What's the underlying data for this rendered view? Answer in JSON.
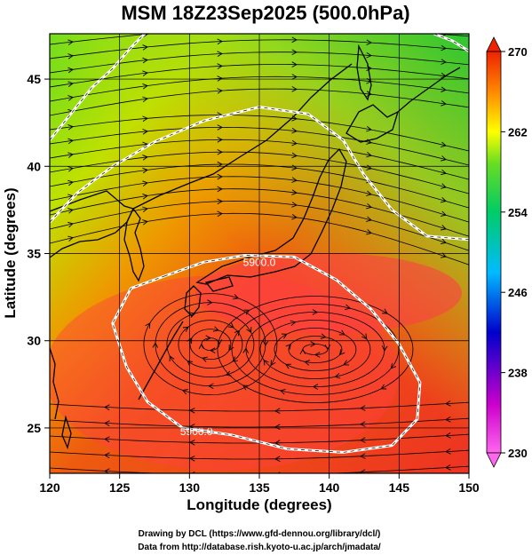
{
  "chart_data": {
    "type": "heatmap",
    "title": "MSM 18Z23Sep2025 (500.0hPa)",
    "xlabel": "Longitude (degrees)",
    "ylabel": "Latitude  (degrees)",
    "xlim": [
      120,
      150
    ],
    "ylim": [
      22.4,
      47.6
    ],
    "x_ticks": [
      120,
      125,
      130,
      135,
      140,
      145,
      150
    ],
    "y_ticks": [
      25,
      30,
      35,
      40,
      45
    ],
    "x_tick_labels": [
      "120",
      "125",
      "130",
      "135",
      "140",
      "145",
      "150"
    ],
    "y_tick_labels": [
      "25",
      "30",
      "35",
      "40",
      "45"
    ],
    "grid": true,
    "colorbar": {
      "range": [
        230,
        270
      ],
      "ticks": [
        230,
        238,
        246,
        254,
        262,
        270
      ],
      "tick_labels": [
        "230",
        "238",
        "246",
        "254",
        "262",
        "270"
      ],
      "colors": [
        "#ff66ee",
        "#cc00cc",
        "#0000cc",
        "#00bbff",
        "#00cc66",
        "#66dd22",
        "#ffff00",
        "#ff8800",
        "#ee2200"
      ]
    },
    "contours": [
      {
        "level_label": "5900.0",
        "color": "#ffffff",
        "path": [
          [
            128.2,
            33.7
          ],
          [
            131.0,
            34.5
          ],
          [
            134.0,
            34.9
          ],
          [
            137.5,
            34.8
          ],
          [
            140.5,
            33.5
          ],
          [
            143.0,
            31.8
          ],
          [
            145.0,
            29.8
          ],
          [
            146.5,
            27.6
          ],
          [
            146.3,
            25.5
          ],
          [
            144.5,
            24.0
          ],
          [
            141.0,
            23.6
          ],
          [
            137.0,
            23.8
          ],
          [
            133.0,
            24.6
          ],
          [
            129.5,
            25.0
          ],
          [
            127.0,
            26.5
          ],
          [
            125.5,
            28.5
          ],
          [
            124.5,
            31.0
          ],
          [
            125.8,
            33.0
          ],
          [
            128.2,
            33.7
          ]
        ],
        "labels_at": [
          [
            135.0,
            34.5
          ],
          [
            130.5,
            24.8
          ]
        ]
      },
      {
        "level_label": "",
        "color": "#ffffff",
        "path": [
          [
            120.0,
            36.8
          ],
          [
            122.0,
            38.5
          ],
          [
            124.5,
            40.0
          ],
          [
            127.5,
            41.4
          ],
          [
            131.0,
            42.6
          ],
          [
            135.0,
            43.4
          ],
          [
            138.5,
            43.0
          ],
          [
            141.0,
            41.5
          ],
          [
            142.5,
            39.5
          ],
          [
            144.5,
            37.5
          ],
          [
            147.0,
            36.0
          ],
          [
            150.0,
            35.8
          ]
        ],
        "labels_at": []
      },
      {
        "level_label": "",
        "color": "#ffffff",
        "path": [
          [
            120.0,
            41.5
          ],
          [
            121.5,
            43.0
          ],
          [
            123.0,
            44.5
          ],
          [
            124.5,
            45.6
          ],
          [
            125.8,
            46.8
          ],
          [
            126.8,
            47.6
          ]
        ],
        "labels_at": []
      },
      {
        "level_label": "",
        "color": "#ffffff",
        "path": [
          [
            147.5,
            47.6
          ],
          [
            148.8,
            47.2
          ],
          [
            150.0,
            46.6
          ]
        ],
        "labels_at": []
      }
    ]
  },
  "footer": {
    "line1": "Drawing by DCL (https://www.gfd-dennou.org/library/dcl/)",
    "line2": "Data from http://database.rish.kyoto-u.ac.jp/arch/jmadata/"
  }
}
